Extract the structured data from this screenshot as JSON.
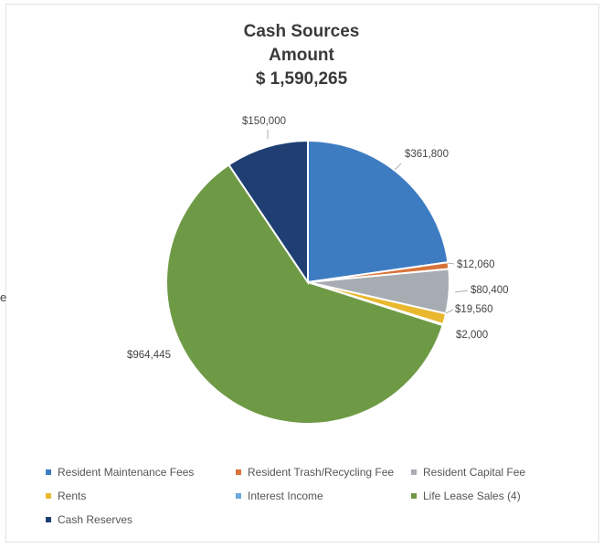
{
  "header": {
    "title_line1": "Cash Sources",
    "title_line2": "Amount",
    "title_line3": "$ 1,590,265"
  },
  "stray_text": "e",
  "chart_data": {
    "type": "pie",
    "title": "Cash Sources Amount $ 1,590,265",
    "start_angle_deg": 0,
    "direction": "clockwise",
    "slices": [
      {
        "name": "Resident Maintenance Fees",
        "value": 361800,
        "label": "$361,800",
        "color": "#3e7cc2"
      },
      {
        "name": "Resident Trash/Recycling Fee",
        "value": 12060,
        "label": "$12,060",
        "color": "#d8743a"
      },
      {
        "name": "Resident Capital Fee",
        "value": 80400,
        "label": "$80,400",
        "color": "#a7acb3"
      },
      {
        "name": "Rents",
        "value": 19560,
        "label": "$19,560",
        "color": "#e9b82f"
      },
      {
        "name": "Interest Income",
        "value": 2000,
        "label": "$2,000",
        "color": "#6aa8dc"
      },
      {
        "name": "Life Lease Sales (4)",
        "value": 964445,
        "label": "$964,445",
        "color": "#6e9a46"
      },
      {
        "name": "Cash Reserves",
        "value": 150000,
        "label": "$150,000",
        "color": "#1f3f72"
      }
    ],
    "legend": {
      "position": "bottom",
      "items": [
        "Resident Maintenance Fees",
        "Resident Trash/Recycling Fee",
        "Resident Capital Fee",
        "Rents",
        "Interest Income",
        "Life Lease Sales (4)",
        "Cash Reserves"
      ]
    }
  }
}
